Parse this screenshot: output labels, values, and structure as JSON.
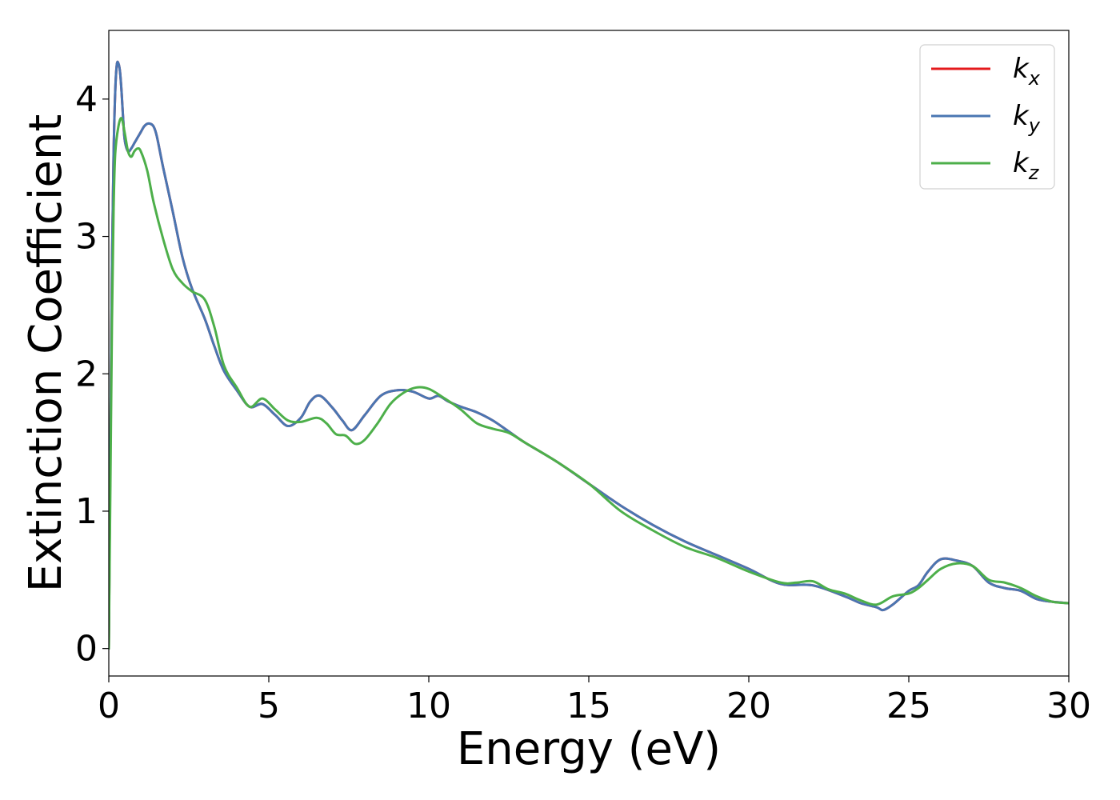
{
  "chart_data": {
    "type": "line",
    "title": "",
    "xlabel": "Energy (eV)",
    "ylabel": "Extinction Coefficient",
    "xlim": [
      0,
      30
    ],
    "ylim": [
      -0.2,
      4.5
    ],
    "xticks": [
      0,
      5,
      10,
      15,
      20,
      25,
      30
    ],
    "yticks": [
      0,
      1,
      2,
      3,
      4
    ],
    "grid": false,
    "legend_position": "upper right",
    "series": [
      {
        "name": "k_x",
        "label_base": "k",
        "label_sub": "x",
        "color": "#e41a1c",
        "x": [
          0,
          0.05,
          0.1,
          0.15,
          0.2,
          0.25,
          0.3,
          0.35,
          0.4,
          0.45,
          0.5,
          0.6,
          0.7,
          0.8,
          0.9,
          1.0,
          1.1,
          1.2,
          1.3,
          1.4,
          1.5,
          1.7,
          2.0,
          2.3,
          2.6,
          3.0,
          3.3,
          3.6,
          4.0,
          4.4,
          4.8,
          5.2,
          5.6,
          6.0,
          6.3,
          6.6,
          7.0,
          7.3,
          7.6,
          8.0,
          8.5,
          9.0,
          9.5,
          10.0,
          10.3,
          10.6,
          11.0,
          11.5,
          12.0,
          12.5,
          13.0,
          14.0,
          15.0,
          16.0,
          17.0,
          18.0,
          19.0,
          20.0,
          21.0,
          22.0,
          23.0,
          23.5,
          24.0,
          24.2,
          24.5,
          25.0,
          25.3,
          25.6,
          26.0,
          26.5,
          27.0,
          27.5,
          28.0,
          28.5,
          29.0,
          29.5,
          30.0
        ],
        "y": [
          0.0,
          1.5,
          2.8,
          3.6,
          4.05,
          4.25,
          4.26,
          4.2,
          4.05,
          3.85,
          3.7,
          3.62,
          3.64,
          3.68,
          3.72,
          3.76,
          3.8,
          3.82,
          3.82,
          3.8,
          3.73,
          3.5,
          3.18,
          2.85,
          2.62,
          2.4,
          2.2,
          2.02,
          1.88,
          1.76,
          1.78,
          1.7,
          1.62,
          1.68,
          1.8,
          1.84,
          1.75,
          1.66,
          1.59,
          1.7,
          1.84,
          1.88,
          1.87,
          1.82,
          1.84,
          1.8,
          1.76,
          1.72,
          1.66,
          1.58,
          1.5,
          1.36,
          1.2,
          1.04,
          0.9,
          0.78,
          0.68,
          0.58,
          0.47,
          0.46,
          0.38,
          0.33,
          0.3,
          0.28,
          0.32,
          0.42,
          0.46,
          0.56,
          0.65,
          0.64,
          0.6,
          0.48,
          0.44,
          0.42,
          0.36,
          0.34,
          0.33
        ]
      },
      {
        "name": "k_y",
        "label_base": "k",
        "label_sub": "y",
        "color": "#4a76b2",
        "x": [
          0,
          0.05,
          0.1,
          0.15,
          0.2,
          0.25,
          0.3,
          0.35,
          0.4,
          0.45,
          0.5,
          0.6,
          0.7,
          0.8,
          0.9,
          1.0,
          1.1,
          1.2,
          1.3,
          1.4,
          1.5,
          1.7,
          2.0,
          2.3,
          2.6,
          3.0,
          3.3,
          3.6,
          4.0,
          4.4,
          4.8,
          5.2,
          5.6,
          6.0,
          6.3,
          6.6,
          7.0,
          7.3,
          7.6,
          8.0,
          8.5,
          9.0,
          9.5,
          10.0,
          10.3,
          10.6,
          11.0,
          11.5,
          12.0,
          12.5,
          13.0,
          14.0,
          15.0,
          16.0,
          17.0,
          18.0,
          19.0,
          20.0,
          21.0,
          22.0,
          23.0,
          23.5,
          24.0,
          24.2,
          24.5,
          25.0,
          25.3,
          25.6,
          26.0,
          26.5,
          27.0,
          27.5,
          28.0,
          28.5,
          29.0,
          29.5,
          30.0
        ],
        "y": [
          0.0,
          1.5,
          2.8,
          3.6,
          4.05,
          4.25,
          4.26,
          4.2,
          4.05,
          3.85,
          3.7,
          3.62,
          3.64,
          3.68,
          3.72,
          3.76,
          3.8,
          3.82,
          3.82,
          3.8,
          3.73,
          3.5,
          3.18,
          2.85,
          2.62,
          2.4,
          2.2,
          2.02,
          1.88,
          1.76,
          1.78,
          1.7,
          1.62,
          1.68,
          1.8,
          1.84,
          1.75,
          1.66,
          1.59,
          1.7,
          1.84,
          1.88,
          1.87,
          1.82,
          1.84,
          1.8,
          1.76,
          1.72,
          1.66,
          1.58,
          1.5,
          1.36,
          1.2,
          1.04,
          0.9,
          0.78,
          0.68,
          0.58,
          0.47,
          0.46,
          0.38,
          0.33,
          0.3,
          0.28,
          0.32,
          0.42,
          0.46,
          0.56,
          0.65,
          0.64,
          0.6,
          0.48,
          0.44,
          0.42,
          0.36,
          0.34,
          0.33
        ]
      },
      {
        "name": "k_z",
        "label_base": "k",
        "label_sub": "z",
        "color": "#4daf4a",
        "x": [
          0,
          0.05,
          0.1,
          0.15,
          0.2,
          0.3,
          0.4,
          0.5,
          0.6,
          0.7,
          0.8,
          0.9,
          1.0,
          1.2,
          1.4,
          1.7,
          2.0,
          2.3,
          2.6,
          3.0,
          3.3,
          3.6,
          4.0,
          4.4,
          4.8,
          5.2,
          5.6,
          6.0,
          6.5,
          6.8,
          7.1,
          7.4,
          7.7,
          8.0,
          8.4,
          8.8,
          9.2,
          9.6,
          10.0,
          10.5,
          11.0,
          11.5,
          12.0,
          12.5,
          13.0,
          14.0,
          15.0,
          16.0,
          17.0,
          18.0,
          19.0,
          20.0,
          21.0,
          21.5,
          22.0,
          22.5,
          23.0,
          23.5,
          24.0,
          24.5,
          25.0,
          25.3,
          25.6,
          26.0,
          26.5,
          27.0,
          27.5,
          28.0,
          28.5,
          29.0,
          29.5,
          30.0
        ],
        "y": [
          0.0,
          1.2,
          2.4,
          3.2,
          3.6,
          3.8,
          3.86,
          3.75,
          3.62,
          3.58,
          3.62,
          3.64,
          3.62,
          3.48,
          3.25,
          2.98,
          2.76,
          2.66,
          2.6,
          2.54,
          2.34,
          2.06,
          1.9,
          1.76,
          1.82,
          1.74,
          1.66,
          1.65,
          1.68,
          1.64,
          1.56,
          1.55,
          1.49,
          1.52,
          1.64,
          1.78,
          1.86,
          1.9,
          1.89,
          1.82,
          1.74,
          1.64,
          1.6,
          1.57,
          1.5,
          1.36,
          1.2,
          1.0,
          0.86,
          0.74,
          0.66,
          0.56,
          0.48,
          0.48,
          0.49,
          0.43,
          0.4,
          0.35,
          0.32,
          0.38,
          0.4,
          0.44,
          0.5,
          0.58,
          0.62,
          0.6,
          0.5,
          0.48,
          0.44,
          0.38,
          0.34,
          0.33
        ]
      }
    ]
  }
}
